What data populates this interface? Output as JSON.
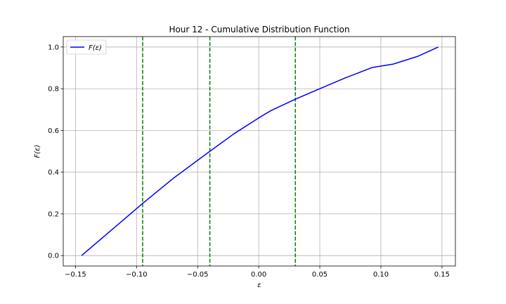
{
  "chart_data": {
    "type": "line",
    "title": "Hour 12 - Cumulative Distribution Function",
    "xlabel": "ε",
    "ylabel": "F(ε)",
    "xlim": [
      -0.16,
      0.161
    ],
    "ylim": [
      -0.05,
      1.05
    ],
    "grid": true,
    "legend_position": "top-left",
    "x_ticks": [
      -0.15,
      -0.1,
      -0.05,
      0.0,
      0.05,
      0.1,
      0.15
    ],
    "x_tick_labels": [
      "−0.15",
      "−0.10",
      "−0.05",
      "0.00",
      "0.05",
      "0.10",
      "0.15"
    ],
    "y_ticks": [
      0.0,
      0.2,
      0.4,
      0.6,
      0.8,
      1.0
    ],
    "y_tick_labels": [
      "0.0",
      "0.2",
      "0.4",
      "0.6",
      "0.8",
      "1.0"
    ],
    "series": [
      {
        "name": "F(ε)",
        "color": "#0000ff",
        "x": [
          -0.145,
          -0.12,
          -0.095,
          -0.07,
          -0.04,
          -0.02,
          0.0,
          0.01,
          0.03,
          0.05,
          0.07,
          0.093,
          0.11,
          0.13,
          0.147
        ],
        "y": [
          0.0,
          0.125,
          0.25,
          0.37,
          0.5,
          0.585,
          0.66,
          0.695,
          0.75,
          0.8,
          0.85,
          0.902,
          0.918,
          0.955,
          1.0
        ]
      }
    ],
    "vlines": {
      "color": "#008000",
      "style": "dashed",
      "x": [
        -0.095,
        -0.04,
        0.03
      ]
    }
  }
}
